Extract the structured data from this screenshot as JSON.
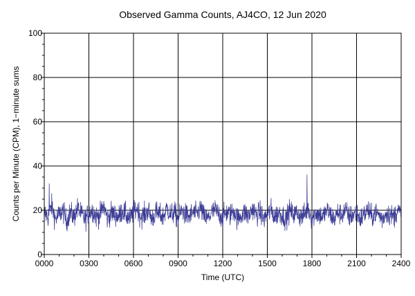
{
  "chart_data": {
    "type": "line",
    "title": "Observed Gamma Counts, AJ4CO, 12 Jun 2020",
    "xlabel": "Time (UTC)",
    "ylabel": "Counts per Minute (CPM), 1−minute sums",
    "xlim": [
      0,
      1440
    ],
    "ylim": [
      0,
      100
    ],
    "x_ticks": [
      {
        "value": 0,
        "label": "0000"
      },
      {
        "value": 180,
        "label": "0300"
      },
      {
        "value": 360,
        "label": "0600"
      },
      {
        "value": 540,
        "label": "0900"
      },
      {
        "value": 720,
        "label": "1200"
      },
      {
        "value": 900,
        "label": "1500"
      },
      {
        "value": 1080,
        "label": "1800"
      },
      {
        "value": 1260,
        "label": "2100"
      },
      {
        "value": 1440,
        "label": "2400"
      }
    ],
    "y_ticks": [
      {
        "value": 0,
        "label": "0"
      },
      {
        "value": 20,
        "label": "20"
      },
      {
        "value": 40,
        "label": "40"
      },
      {
        "value": 60,
        "label": "60"
      },
      {
        "value": 80,
        "label": "80"
      },
      {
        "value": 100,
        "label": "100"
      }
    ],
    "grid": true,
    "series_color": "#3c3c96",
    "series": [
      {
        "x_unit": "minutes",
        "x_step": 1,
        "mean": 18,
        "notable_values": [
          {
            "x": 20,
            "y": 32
          },
          {
            "x": 1060,
            "y": 36
          }
        ],
        "x": [
          0,
          15,
          30,
          45,
          60,
          75,
          90,
          105,
          120,
          135,
          150,
          165,
          180,
          195,
          210,
          225,
          240,
          255,
          270,
          285,
          300,
          315,
          330,
          345,
          360,
          375,
          390,
          405,
          420,
          435,
          450,
          465,
          480,
          495,
          510,
          525,
          540,
          555,
          570,
          585,
          600,
          615,
          630,
          645,
          660,
          675,
          690,
          705,
          720,
          735,
          750,
          765,
          780,
          795,
          810,
          825,
          840,
          855,
          870,
          885,
          900,
          915,
          930,
          945,
          960,
          975,
          990,
          1005,
          1020,
          1035,
          1050,
          1065,
          1080,
          1095,
          1110,
          1125,
          1140,
          1155,
          1170,
          1185,
          1200,
          1215,
          1230,
          1245,
          1260,
          1275,
          1290,
          1305,
          1320,
          1335,
          1350,
          1365,
          1380,
          1395,
          1410,
          1425,
          1440
        ],
        "values": [
          19,
          17,
          22,
          16,
          18,
          20,
          15,
          19,
          17,
          21,
          18,
          16,
          19,
          20,
          17,
          18,
          22,
          16,
          19,
          18,
          17,
          20,
          18,
          16,
          19,
          21,
          17,
          18,
          20,
          16,
          19,
          18,
          17,
          21,
          18,
          19,
          16,
          20,
          18,
          17,
          19,
          18,
          21,
          17,
          16,
          19,
          20,
          18,
          17,
          19,
          18,
          20,
          16,
          18,
          19,
          17,
          21,
          18,
          19,
          16,
          18,
          20,
          17,
          19,
          18,
          16,
          20,
          18,
          19,
          17,
          18,
          21,
          16,
          19,
          18,
          17,
          20,
          18,
          16,
          19,
          18,
          20,
          17,
          18,
          19,
          16,
          18,
          20,
          17,
          19,
          18,
          16,
          19,
          18,
          17,
          20,
          18
        ]
      }
    ]
  }
}
